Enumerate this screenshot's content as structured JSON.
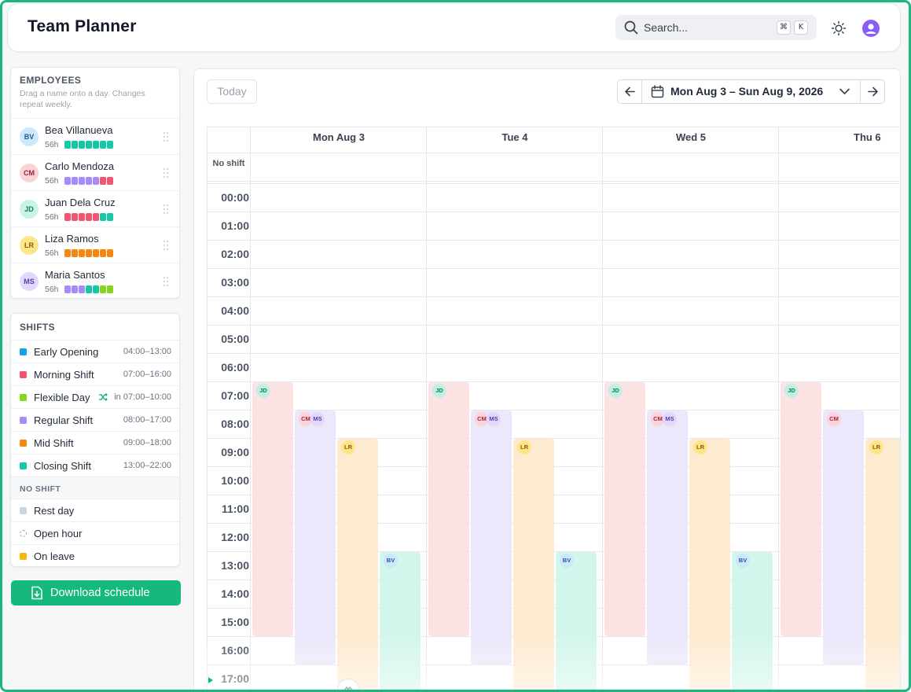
{
  "app": {
    "title": "Team Planner"
  },
  "search": {
    "placeholder": "Search...",
    "shortcut_keys": [
      "⌘",
      "K"
    ]
  },
  "icons": {
    "search": "search-icon",
    "theme": "sun-icon",
    "profile": "user-avatar-icon",
    "calendar": "calendar-icon",
    "prev": "arrow-left-icon",
    "next": "arrow-right-icon",
    "chevron": "chevron-down-icon",
    "download": "file-download-icon",
    "grip": "drag-handle-icon",
    "flex": "shuffle-icon"
  },
  "employees_panel": {
    "heading": "EMPLOYEES",
    "subtitle": "Drag a name onto a day. Changes repeat weekly.",
    "items": [
      {
        "initials": "BV",
        "name": "Bea Villanueva",
        "hours": "56h",
        "avatar_bg": "#cde7fb",
        "avatar_fg": "#1e5a8a",
        "week": [
          "#14c9a8",
          "#14c9a8",
          "#14c9a8",
          "#14c9a8",
          "#14c9a8",
          "#14c9a8",
          "#14c9a8"
        ]
      },
      {
        "initials": "CM",
        "name": "Carlo Mendoza",
        "hours": "56h",
        "avatar_bg": "#fbd3d9",
        "avatar_fg": "#a1223b",
        "week": [
          "#a78bfa",
          "#a78bfa",
          "#a78bfa",
          "#a78bfa",
          "#a78bfa",
          "#f0566f",
          "#f0566f"
        ]
      },
      {
        "initials": "JD",
        "name": "Juan Dela Cruz",
        "hours": "56h",
        "avatar_bg": "#c8f3e6",
        "avatar_fg": "#17795e",
        "week": [
          "#f0566f",
          "#f0566f",
          "#f0566f",
          "#f0566f",
          "#f0566f",
          "#14c9a8",
          "#14c9a8"
        ]
      },
      {
        "initials": "LR",
        "name": "Liza Ramos",
        "hours": "56h",
        "avatar_bg": "#fde68a",
        "avatar_fg": "#8a5a05",
        "week": [
          "#f5870f",
          "#f5870f",
          "#f5870f",
          "#f5870f",
          "#f5870f",
          "#f5870f",
          "#f5870f"
        ]
      },
      {
        "initials": "MS",
        "name": "Maria Santos",
        "hours": "56h",
        "avatar_bg": "#e2d8fb",
        "avatar_fg": "#5b3ab0",
        "week": [
          "#a78bfa",
          "#a78bfa",
          "#a78bfa",
          "#14c9a8",
          "#14c9a8",
          "#84d61c",
          "#84d61c"
        ]
      }
    ]
  },
  "shifts_panel": {
    "heading": "SHIFTS",
    "items": [
      {
        "name": "Early Opening",
        "time": "04:00–13:00",
        "color": "#0ea5e9"
      },
      {
        "name": "Morning Shift",
        "time": "07:00–16:00",
        "color": "#f0566f"
      },
      {
        "name": "Flexible Day",
        "time": "in 07:00–10:00",
        "color": "#84d61c",
        "flexible": true
      },
      {
        "name": "Regular Shift",
        "time": "08:00–17:00",
        "color": "#a78bfa"
      },
      {
        "name": "Mid Shift",
        "time": "09:00–18:00",
        "color": "#f5870f"
      },
      {
        "name": "Closing Shift",
        "time": "13:00–22:00",
        "color": "#14c9a8"
      }
    ],
    "no_shift_heading": "NO SHIFT",
    "no_shift_items": [
      {
        "name": "Rest day",
        "color": "#cbd5e1",
        "style": "solid"
      },
      {
        "name": "Open hour",
        "color": "#9ca3af",
        "style": "dashed"
      },
      {
        "name": "On leave",
        "color": "#f5b70b",
        "style": "solid"
      }
    ]
  },
  "download_button": {
    "label": "Download schedule"
  },
  "calendar": {
    "today_label": "Today",
    "range_label": "Mon Aug 3 – Sun Aug 9, 2026",
    "no_shift_label": "No shift",
    "days": [
      "Mon Aug 3",
      "Tue 4",
      "Wed 5",
      "Thu 6"
    ],
    "hours": [
      "00:00",
      "01:00",
      "02:00",
      "03:00",
      "04:00",
      "05:00",
      "06:00",
      "07:00",
      "08:00",
      "09:00",
      "10:00",
      "11:00",
      "12:00",
      "13:00",
      "14:00",
      "15:00",
      "16:00",
      "17:00"
    ],
    "lanes": [
      {
        "initials": "JD",
        "start_hour": 7,
        "end_hour": 16,
        "bg": "#fde2e4",
        "pin_bg": "#bff0e1",
        "pin_fg": "#17795e"
      },
      {
        "initials": "CM",
        "start_hour": 8,
        "end_hour": 17,
        "bg": "#ece8fb",
        "pin_bg": "#fbd3d9",
        "pin_fg": "#a1223b",
        "second": {
          "initials": "MS",
          "pin_bg": "#e2d8fb",
          "pin_fg": "#5b3ab0"
        }
      },
      {
        "initials": "LR",
        "start_hour": 9,
        "end_hour": 18,
        "bg": "#fdebd0",
        "pin_bg": "#fde68a",
        "pin_fg": "#8a5a05"
      },
      {
        "initials": "BV",
        "start_hour": 13,
        "end_hour": 22,
        "bg": "#d3f6ec",
        "pin_bg": "#cde7fb",
        "pin_fg": "#1e5a8a"
      }
    ],
    "thursday_second_initials": null
  }
}
